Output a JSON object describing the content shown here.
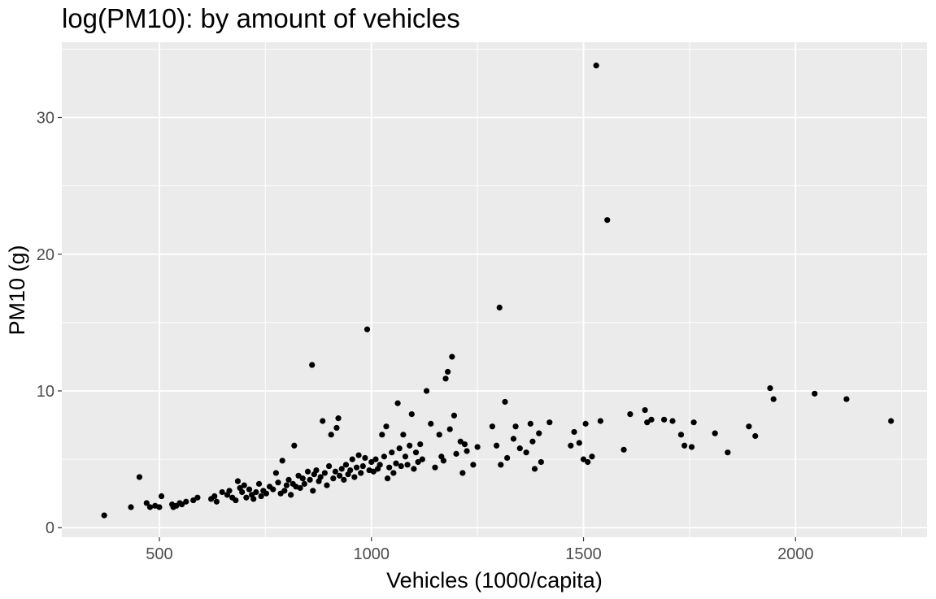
{
  "chart_data": {
    "type": "scatter",
    "title": "log(PM10): by amount of vehicles",
    "xlabel": "Vehicles (1000/capita)",
    "ylabel": "PM10 (g)",
    "xlim": [
      270,
      2310
    ],
    "ylim": [
      -0.7,
      35.5
    ],
    "x_ticks": [
      500,
      1000,
      1500,
      2000
    ],
    "y_ticks": [
      0,
      10,
      20,
      30
    ],
    "x_minor": [
      750,
      1250,
      1750,
      2250
    ],
    "y_minor": [
      5,
      15,
      25,
      35
    ],
    "grid": true,
    "colors": {
      "panel": "#ebebeb",
      "grid": "#ffffff",
      "point": "#000000",
      "tick": "#4d4d4d"
    },
    "points": [
      {
        "x": 370,
        "y": 0.9
      },
      {
        "x": 433,
        "y": 1.5
      },
      {
        "x": 453,
        "y": 3.7
      },
      {
        "x": 470,
        "y": 1.8
      },
      {
        "x": 478,
        "y": 1.5
      },
      {
        "x": 490,
        "y": 1.6
      },
      {
        "x": 500,
        "y": 1.5
      },
      {
        "x": 505,
        "y": 2.3
      },
      {
        "x": 530,
        "y": 1.7
      },
      {
        "x": 533,
        "y": 1.5
      },
      {
        "x": 540,
        "y": 1.6
      },
      {
        "x": 548,
        "y": 1.8
      },
      {
        "x": 553,
        "y": 1.7
      },
      {
        "x": 563,
        "y": 1.9
      },
      {
        "x": 580,
        "y": 2.0
      },
      {
        "x": 590,
        "y": 2.2
      },
      {
        "x": 622,
        "y": 2.1
      },
      {
        "x": 630,
        "y": 2.3
      },
      {
        "x": 635,
        "y": 1.9
      },
      {
        "x": 648,
        "y": 2.6
      },
      {
        "x": 660,
        "y": 2.4
      },
      {
        "x": 665,
        "y": 2.7
      },
      {
        "x": 672,
        "y": 2.2
      },
      {
        "x": 680,
        "y": 2.0
      },
      {
        "x": 685,
        "y": 3.4
      },
      {
        "x": 690,
        "y": 2.9
      },
      {
        "x": 695,
        "y": 2.6
      },
      {
        "x": 700,
        "y": 3.1
      },
      {
        "x": 705,
        "y": 2.2
      },
      {
        "x": 712,
        "y": 2.8
      },
      {
        "x": 718,
        "y": 2.4
      },
      {
        "x": 722,
        "y": 2.1
      },
      {
        "x": 728,
        "y": 2.6
      },
      {
        "x": 735,
        "y": 3.2
      },
      {
        "x": 740,
        "y": 2.3
      },
      {
        "x": 745,
        "y": 2.7
      },
      {
        "x": 752,
        "y": 2.5
      },
      {
        "x": 760,
        "y": 3.0
      },
      {
        "x": 768,
        "y": 2.8
      },
      {
        "x": 775,
        "y": 4.0
      },
      {
        "x": 780,
        "y": 3.3
      },
      {
        "x": 786,
        "y": 2.5
      },
      {
        "x": 790,
        "y": 4.9
      },
      {
        "x": 795,
        "y": 2.7
      },
      {
        "x": 800,
        "y": 3.1
      },
      {
        "x": 805,
        "y": 3.5
      },
      {
        "x": 810,
        "y": 2.4
      },
      {
        "x": 815,
        "y": 3.2
      },
      {
        "x": 818,
        "y": 6.0
      },
      {
        "x": 822,
        "y": 3.0
      },
      {
        "x": 828,
        "y": 3.8
      },
      {
        "x": 832,
        "y": 2.9
      },
      {
        "x": 838,
        "y": 3.6
      },
      {
        "x": 842,
        "y": 3.2
      },
      {
        "x": 850,
        "y": 4.1
      },
      {
        "x": 855,
        "y": 3.5
      },
      {
        "x": 860,
        "y": 11.9
      },
      {
        "x": 862,
        "y": 2.7
      },
      {
        "x": 865,
        "y": 3.9
      },
      {
        "x": 870,
        "y": 4.2
      },
      {
        "x": 876,
        "y": 3.4
      },
      {
        "x": 880,
        "y": 3.7
      },
      {
        "x": 885,
        "y": 7.8
      },
      {
        "x": 890,
        "y": 4.0
      },
      {
        "x": 895,
        "y": 3.1
      },
      {
        "x": 900,
        "y": 4.5
      },
      {
        "x": 905,
        "y": 6.8
      },
      {
        "x": 910,
        "y": 3.6
      },
      {
        "x": 915,
        "y": 4.1
      },
      {
        "x": 918,
        "y": 7.3
      },
      {
        "x": 922,
        "y": 8.0
      },
      {
        "x": 925,
        "y": 3.8
      },
      {
        "x": 930,
        "y": 4.3
      },
      {
        "x": 935,
        "y": 3.5
      },
      {
        "x": 940,
        "y": 4.6
      },
      {
        "x": 945,
        "y": 3.9
      },
      {
        "x": 950,
        "y": 4.2
      },
      {
        "x": 955,
        "y": 5.0
      },
      {
        "x": 960,
        "y": 3.7
      },
      {
        "x": 965,
        "y": 4.4
      },
      {
        "x": 970,
        "y": 5.3
      },
      {
        "x": 975,
        "y": 4.0
      },
      {
        "x": 980,
        "y": 4.5
      },
      {
        "x": 985,
        "y": 5.1
      },
      {
        "x": 990,
        "y": 14.5
      },
      {
        "x": 995,
        "y": 4.2
      },
      {
        "x": 1000,
        "y": 4.8
      },
      {
        "x": 1005,
        "y": 4.1
      },
      {
        "x": 1010,
        "y": 5.0
      },
      {
        "x": 1015,
        "y": 4.3
      },
      {
        "x": 1020,
        "y": 4.6
      },
      {
        "x": 1025,
        "y": 6.8
      },
      {
        "x": 1030,
        "y": 5.2
      },
      {
        "x": 1035,
        "y": 7.4
      },
      {
        "x": 1038,
        "y": 3.6
      },
      {
        "x": 1042,
        "y": 4.4
      },
      {
        "x": 1048,
        "y": 5.5
      },
      {
        "x": 1052,
        "y": 4.0
      },
      {
        "x": 1058,
        "y": 4.7
      },
      {
        "x": 1062,
        "y": 9.1
      },
      {
        "x": 1066,
        "y": 5.8
      },
      {
        "x": 1070,
        "y": 4.5
      },
      {
        "x": 1075,
        "y": 6.8
      },
      {
        "x": 1080,
        "y": 5.2
      },
      {
        "x": 1085,
        "y": 4.6
      },
      {
        "x": 1090,
        "y": 6.0
      },
      {
        "x": 1095,
        "y": 8.3
      },
      {
        "x": 1100,
        "y": 4.3
      },
      {
        "x": 1105,
        "y": 5.5
      },
      {
        "x": 1110,
        "y": 4.8
      },
      {
        "x": 1115,
        "y": 6.1
      },
      {
        "x": 1120,
        "y": 5.0
      },
      {
        "x": 1130,
        "y": 10.0
      },
      {
        "x": 1140,
        "y": 7.6
      },
      {
        "x": 1150,
        "y": 4.4
      },
      {
        "x": 1160,
        "y": 6.8
      },
      {
        "x": 1165,
        "y": 5.2
      },
      {
        "x": 1170,
        "y": 4.9
      },
      {
        "x": 1175,
        "y": 10.9
      },
      {
        "x": 1180,
        "y": 11.4
      },
      {
        "x": 1185,
        "y": 7.2
      },
      {
        "x": 1190,
        "y": 12.5
      },
      {
        "x": 1195,
        "y": 8.2
      },
      {
        "x": 1200,
        "y": 5.4
      },
      {
        "x": 1210,
        "y": 6.3
      },
      {
        "x": 1215,
        "y": 4.0
      },
      {
        "x": 1220,
        "y": 6.1
      },
      {
        "x": 1225,
        "y": 5.6
      },
      {
        "x": 1240,
        "y": 4.6
      },
      {
        "x": 1250,
        "y": 5.9
      },
      {
        "x": 1285,
        "y": 7.4
      },
      {
        "x": 1295,
        "y": 6.0
      },
      {
        "x": 1302,
        "y": 16.1
      },
      {
        "x": 1305,
        "y": 4.6
      },
      {
        "x": 1315,
        "y": 9.2
      },
      {
        "x": 1320,
        "y": 5.1
      },
      {
        "x": 1335,
        "y": 6.5
      },
      {
        "x": 1340,
        "y": 7.4
      },
      {
        "x": 1350,
        "y": 5.8
      },
      {
        "x": 1365,
        "y": 5.5
      },
      {
        "x": 1375,
        "y": 7.6
      },
      {
        "x": 1380,
        "y": 6.3
      },
      {
        "x": 1385,
        "y": 4.3
      },
      {
        "x": 1395,
        "y": 6.9
      },
      {
        "x": 1400,
        "y": 4.8
      },
      {
        "x": 1420,
        "y": 7.7
      },
      {
        "x": 1470,
        "y": 6.0
      },
      {
        "x": 1478,
        "y": 7.0
      },
      {
        "x": 1490,
        "y": 6.2
      },
      {
        "x": 1500,
        "y": 5.0
      },
      {
        "x": 1505,
        "y": 7.6
      },
      {
        "x": 1510,
        "y": 4.8
      },
      {
        "x": 1520,
        "y": 5.2
      },
      {
        "x": 1530,
        "y": 33.8
      },
      {
        "x": 1540,
        "y": 7.8
      },
      {
        "x": 1556,
        "y": 22.5
      },
      {
        "x": 1595,
        "y": 5.7
      },
      {
        "x": 1610,
        "y": 8.3
      },
      {
        "x": 1645,
        "y": 8.6
      },
      {
        "x": 1650,
        "y": 7.7
      },
      {
        "x": 1660,
        "y": 7.9
      },
      {
        "x": 1690,
        "y": 7.9
      },
      {
        "x": 1710,
        "y": 7.8
      },
      {
        "x": 1730,
        "y": 6.8
      },
      {
        "x": 1738,
        "y": 6.0
      },
      {
        "x": 1755,
        "y": 5.9
      },
      {
        "x": 1760,
        "y": 7.7
      },
      {
        "x": 1810,
        "y": 6.9
      },
      {
        "x": 1840,
        "y": 5.5
      },
      {
        "x": 1890,
        "y": 7.4
      },
      {
        "x": 1905,
        "y": 6.7
      },
      {
        "x": 1940,
        "y": 10.2
      },
      {
        "x": 1948,
        "y": 9.4
      },
      {
        "x": 2045,
        "y": 9.8
      },
      {
        "x": 2120,
        "y": 9.4
      },
      {
        "x": 2225,
        "y": 7.8
      }
    ]
  }
}
